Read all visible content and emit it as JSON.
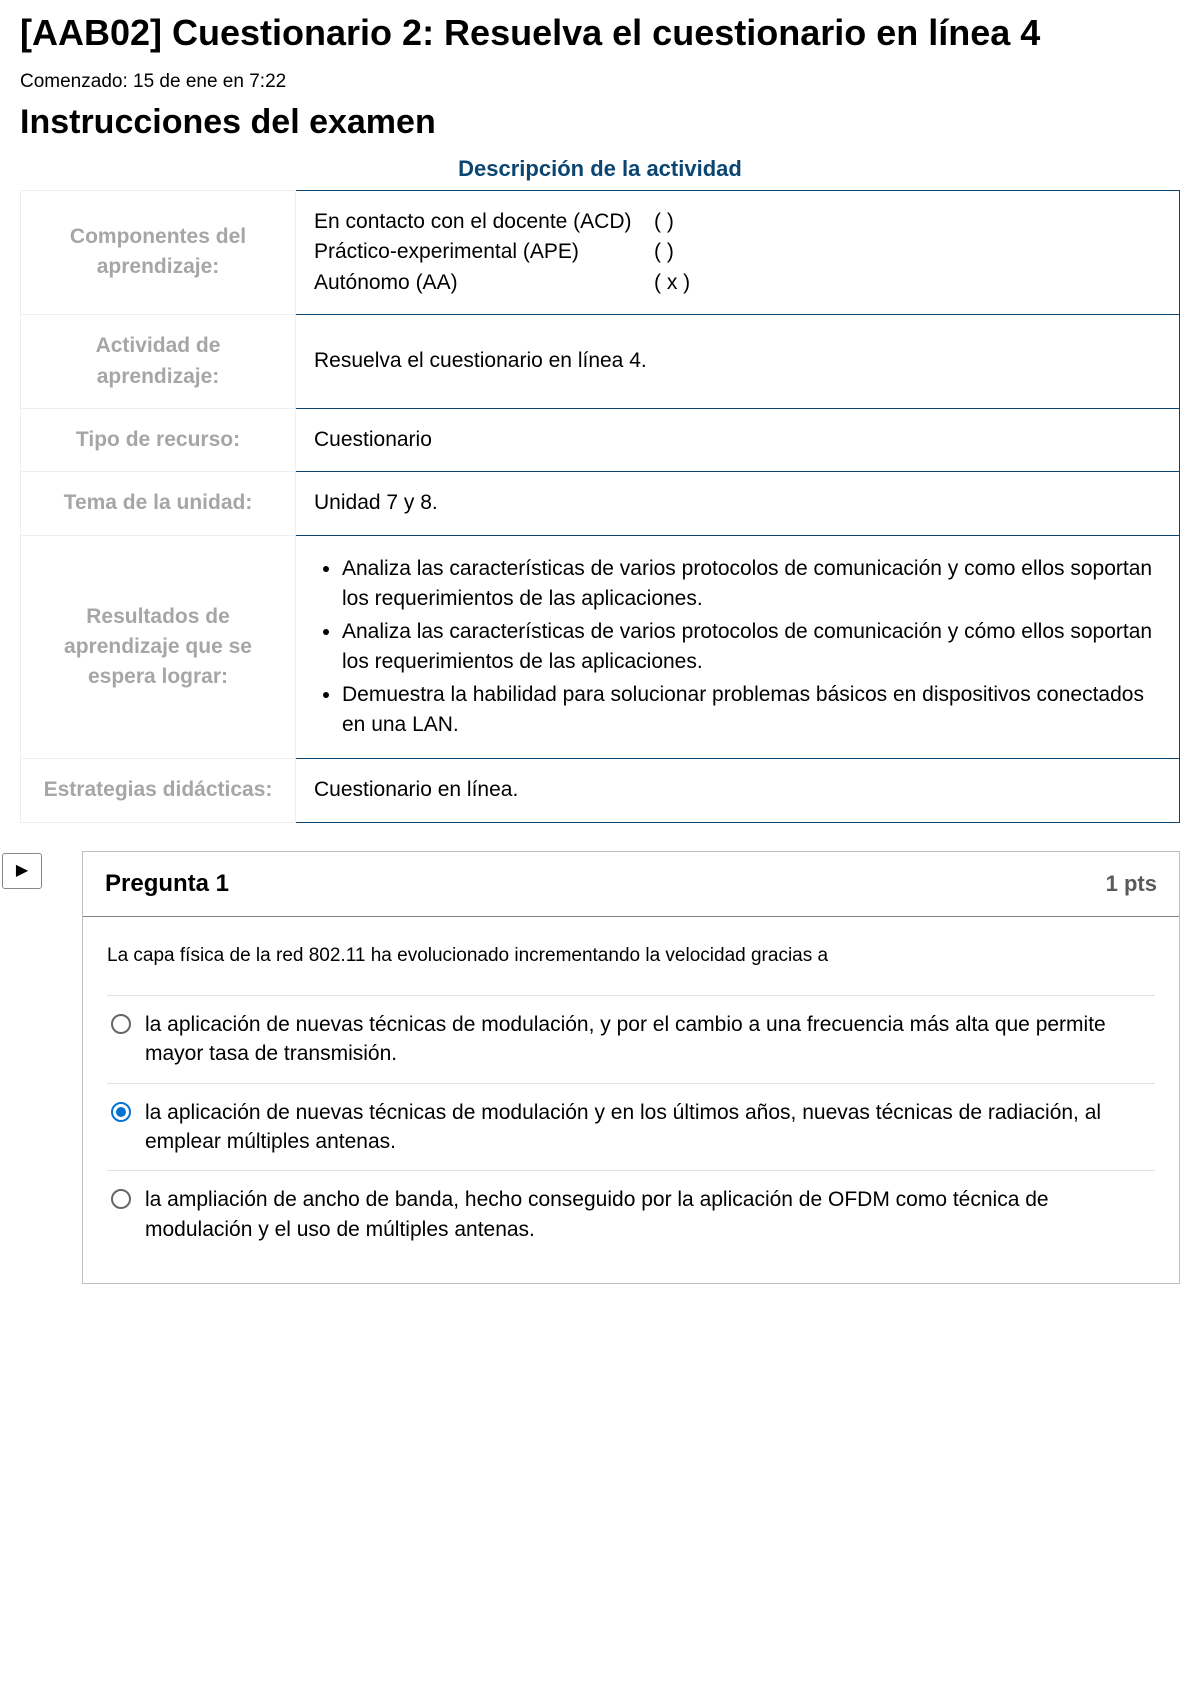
{
  "header": {
    "title": "[AAB02] Cuestionario 2: Resuelva el cuestionario en línea 4",
    "started": "Comenzado: 15 de ene en 7:22",
    "instructions_heading": "Instrucciones del examen",
    "description_label": "Descripción de la actividad"
  },
  "info_table": {
    "border_color": "#0b4572",
    "label_color": "#a6a6a6",
    "rows": {
      "componentes": {
        "label": "Componentes del aprendizaje:",
        "lines": [
          {
            "name": "En contacto con el docente (ACD)",
            "mark": "(    )"
          },
          {
            "name": "Práctico-experimental (APE)",
            "mark": "(    )"
          },
          {
            "name": "Autónomo (AA)",
            "mark": " ( x )"
          }
        ]
      },
      "actividad": {
        "label": "Actividad de aprendizaje:",
        "value": "Resuelva el cuestionario en línea 4."
      },
      "tipo": {
        "label": "Tipo de recurso:",
        "value": "Cuestionario"
      },
      "tema": {
        "label": "Tema de la unidad:",
        "value": "Unidad 7 y 8."
      },
      "resultados": {
        "label": "Resultados de aprendizaje que se espera lograr:",
        "bullets": [
          "Analiza las características de varios protocolos de comunicación y como ellos soportan los requerimientos de las aplicaciones.",
          "Analiza las características de varios protocolos de comunicación y cómo ellos soportan los requerimientos de las aplicaciones.",
          "Demuestra la habilidad para solucionar problemas básicos en dispositivos conectados en una LAN."
        ]
      },
      "estrategias": {
        "label": "Estrategias didácticas:",
        "value": "Cuestionario en línea."
      }
    }
  },
  "nav_toggle_glyph": "▶",
  "question": {
    "number_label": "Pregunta 1",
    "points_label": "1 pts",
    "prompt": "La capa física de la red 802.11 ha evolucionado incrementando la velocidad gracias a",
    "selected_index": 1,
    "options": [
      "la aplicación de nuevas técnicas de modulación, y por el cambio a una frecuencia más alta que permite mayor tasa de transmisión.",
      "la aplicación de nuevas técnicas de modulación y en los últimos años, nuevas técnicas de radiación, al emplear múltiples antenas.",
      "la ampliación de ancho de banda, hecho conseguido por la aplicación de OFDM como técnica de modulación y el uso de múltiples antenas."
    ]
  },
  "colors": {
    "accent_blue": "#0374d6",
    "dark_blue": "#0b4572",
    "label_gray": "#a6a6a6",
    "border_gray": "#c0c0c0",
    "divider_gray": "#e2e2e2"
  }
}
